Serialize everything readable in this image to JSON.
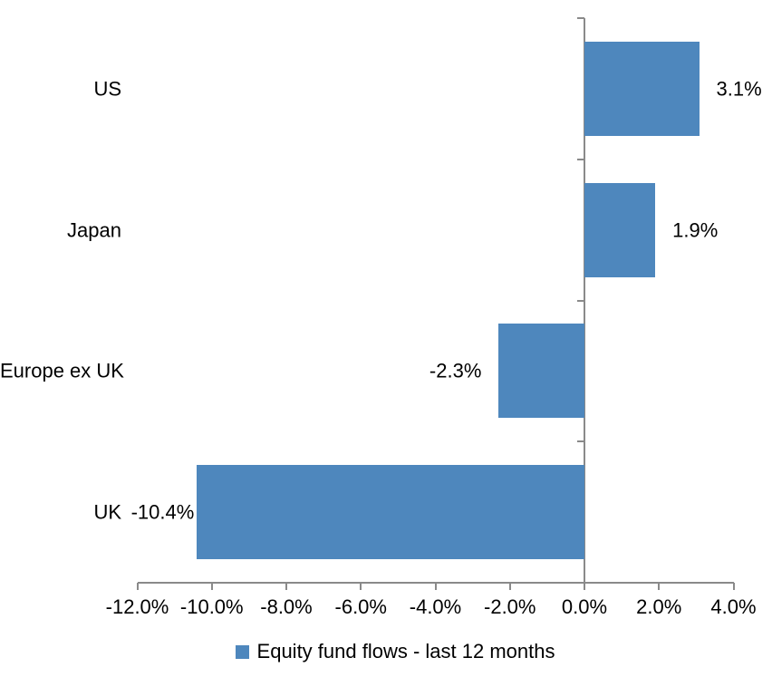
{
  "chart_data": {
    "type": "bar",
    "orientation": "horizontal",
    "title": "",
    "xlabel": "",
    "ylabel": "",
    "categories": [
      "US",
      "Japan",
      "Europe ex UK",
      "UK"
    ],
    "series": [
      {
        "name": "Equity fund flows - last 12 months",
        "values": [
          3.1,
          1.9,
          -2.3,
          -10.4
        ],
        "labels": [
          "3.1%",
          "1.9%",
          "-2.3%",
          "-10.4%"
        ],
        "color": "#4e87bd"
      }
    ],
    "xlim": [
      -12,
      4
    ],
    "xticks": [
      {
        "value": -12,
        "label": "-12.0%"
      },
      {
        "value": -10,
        "label": "-10.0%"
      },
      {
        "value": -8,
        "label": "-8.0%"
      },
      {
        "value": -6,
        "label": "-6.0%"
      },
      {
        "value": -4,
        "label": "-4.0%"
      },
      {
        "value": -2,
        "label": "-2.0%"
      },
      {
        "value": 0,
        "label": "0.0%"
      },
      {
        "value": 2,
        "label": "2.0%"
      },
      {
        "value": 4,
        "label": "4.0%"
      }
    ],
    "grid": false,
    "legend_position": "bottom",
    "colors": {
      "bar": "#4e87bd",
      "axis": "#8a8a8a",
      "text": "#000000",
      "background": "#ffffff"
    }
  }
}
